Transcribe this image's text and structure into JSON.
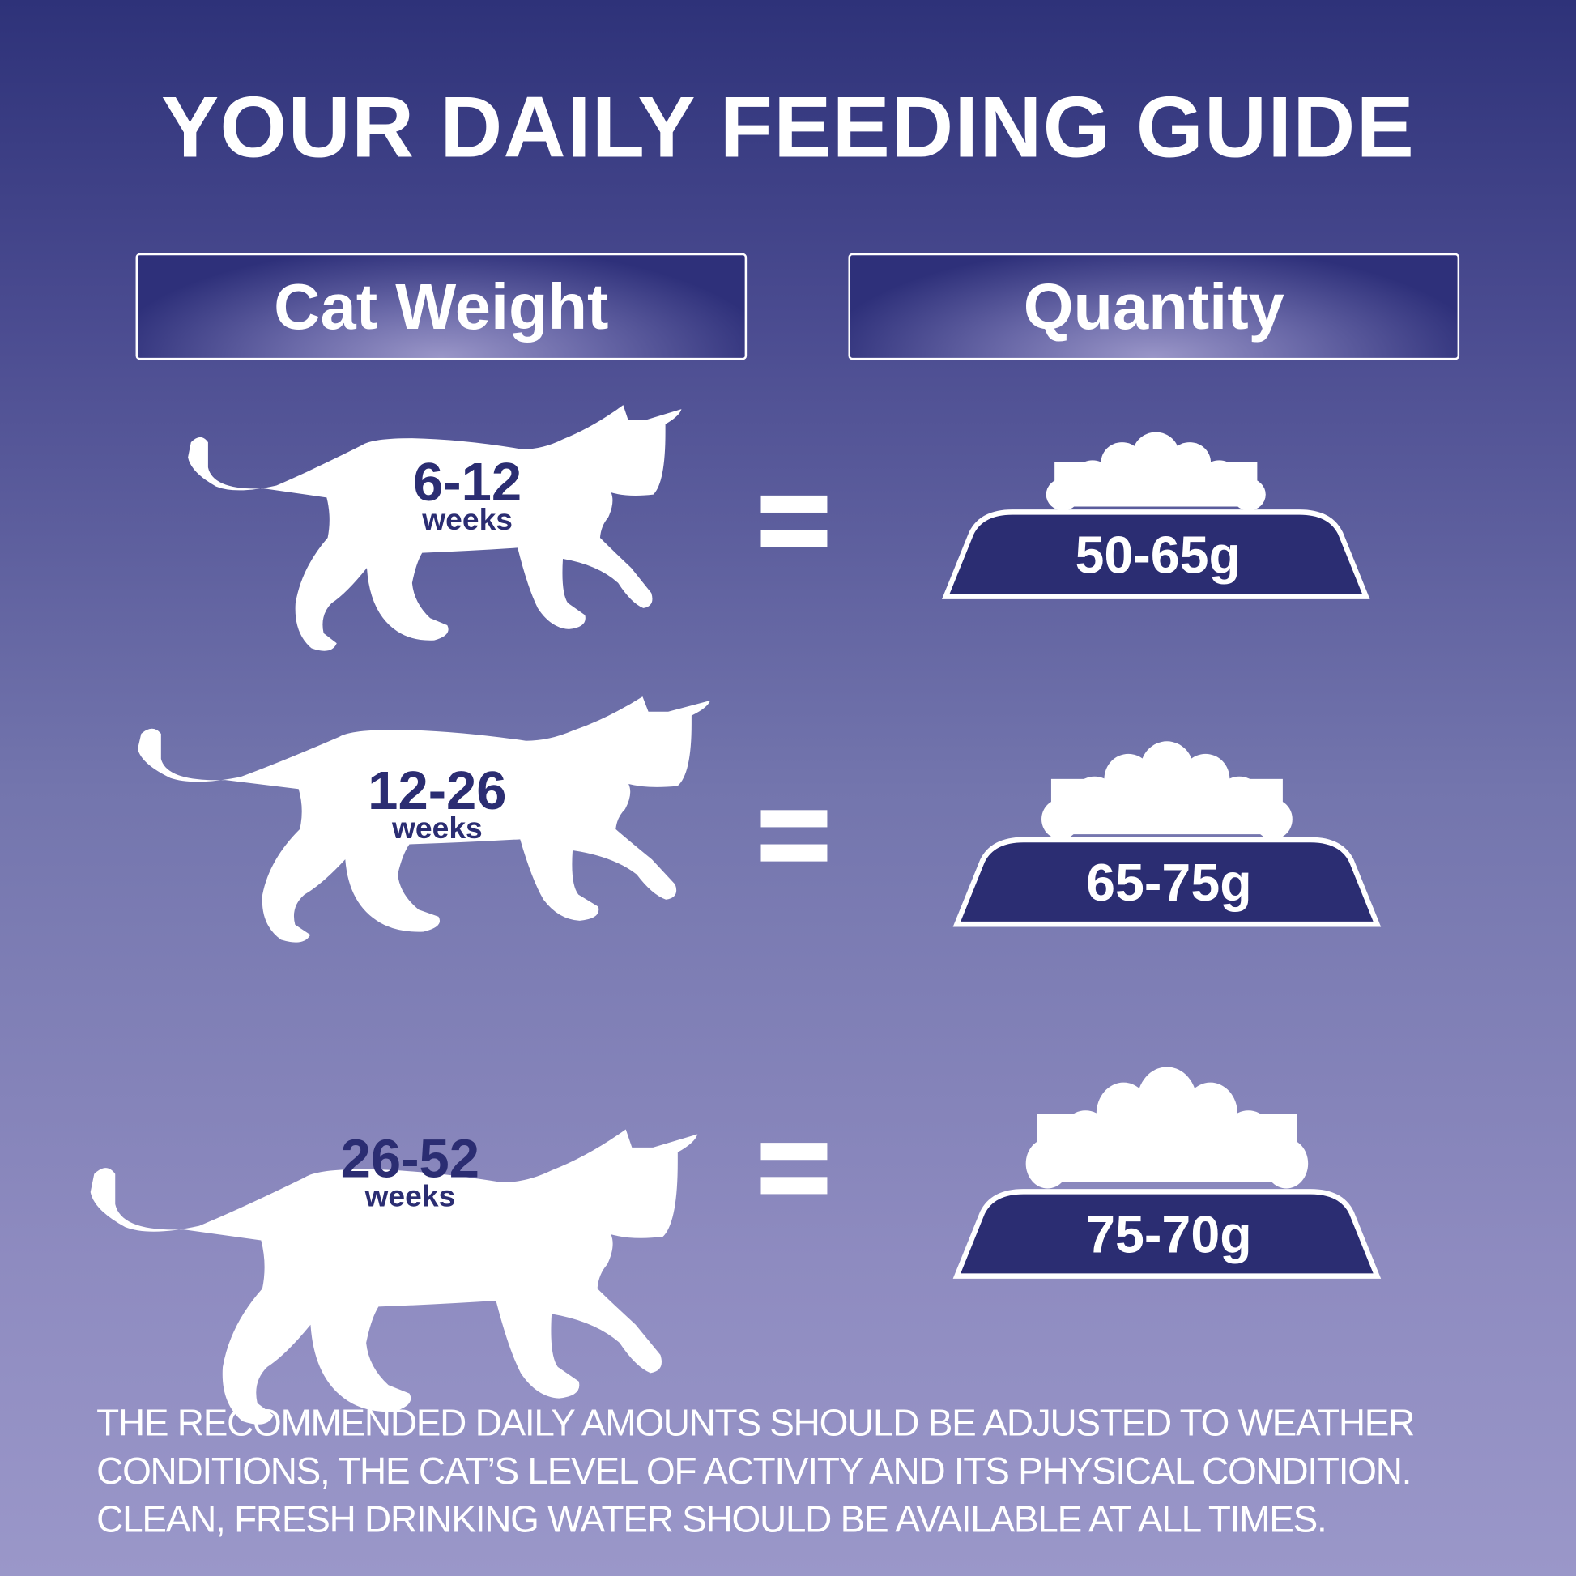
{
  "title": "YOUR DAILY FEEDING GUIDE",
  "headers": {
    "left": "Cat Weight",
    "right": "Quantity"
  },
  "rows": [
    {
      "age": "6-12",
      "unit": "weeks",
      "equals": "=",
      "quantity": "50-65g"
    },
    {
      "age": "12-26",
      "unit": "weeks",
      "equals": "=",
      "quantity": "65-75g"
    },
    {
      "age": "26-52",
      "unit": "weeks",
      "equals": "=",
      "quantity": "75-70g"
    }
  ],
  "footer": [
    "THE RECOMMENDED DAILY AMOUNTS SHOULD BE ADJUSTED TO WEATHER",
    "CONDITIONS, THE CAT’S LEVEL OF ACTIVITY AND ITS PHYSICAL CONDITION.",
    "CLEAN, FRESH DRINKING WATER SHOULD BE AVAILABLE AT ALL TIMES."
  ],
  "colors": {
    "navy": "#2b2d72",
    "white": "#ffffff"
  }
}
